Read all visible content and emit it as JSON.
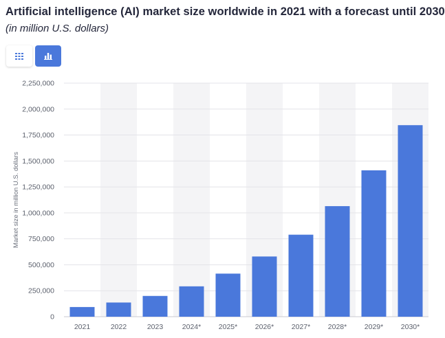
{
  "header": {
    "title": "Artificial intelligence (AI) market size worldwide in 2021 with a forecast until 2030",
    "subtitle": "(in million U.S. dollars)"
  },
  "toolbar": {
    "table_view_icon": "grid-icon",
    "chart_view_icon": "bar-chart-icon",
    "active_view": "chart"
  },
  "colors": {
    "bar": "#4a78db",
    "band": "#f4f4f6",
    "grid": "#e3e3e8",
    "active_button": "#4a78db"
  },
  "chart_data": {
    "type": "bar",
    "title": "Artificial intelligence (AI) market size worldwide in 2021 with a forecast until 2030",
    "subtitle": "(in million U.S. dollars)",
    "xlabel": "",
    "ylabel": "Market size in million U.S. dollars",
    "categories": [
      "2021",
      "2022",
      "2023",
      "2024*",
      "2025*",
      "2026*",
      "2027*",
      "2028*",
      "2029*",
      "2030*"
    ],
    "values": [
      93270,
      136550,
      200000,
      292500,
      415000,
      580000,
      790000,
      1065000,
      1410000,
      1845000
    ],
    "ylim": [
      0,
      2250000
    ],
    "yticks": [
      0,
      250000,
      500000,
      750000,
      1000000,
      1250000,
      1500000,
      1750000,
      2000000,
      2250000
    ],
    "ytick_labels": [
      "0",
      "250,000",
      "500,000",
      "750,000",
      "1,000,000",
      "1,250,000",
      "1,500,000",
      "1,750,000",
      "2,000,000",
      "2,250,000"
    ],
    "grid": true,
    "legend": "none"
  }
}
